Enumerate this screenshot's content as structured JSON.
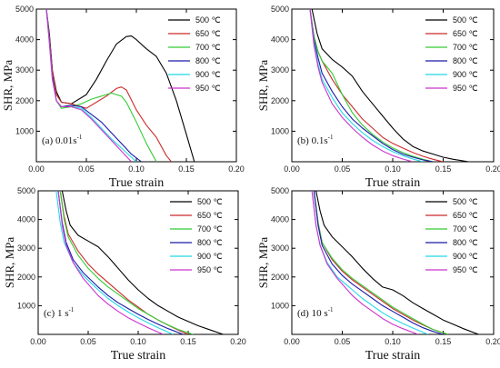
{
  "colors": {
    "500": "#000000",
    "650": "#cc2b2b",
    "700": "#33cc33",
    "800": "#1a1aa8",
    "900": "#22d8e8",
    "950": "#cc33cc"
  },
  "chart_data": [
    {
      "type": "line",
      "panel_label": "(a) 0.01s",
      "panel_sup": "-1",
      "xlabel": "True strain",
      "ylabel": "SHR, MPa",
      "xlim": [
        0,
        0.2
      ],
      "ylim": [
        0,
        5000
      ],
      "xticks": [
        "0.00",
        "0.05",
        "0.10",
        "0.15",
        "0.20"
      ],
      "yticks": [
        "1000",
        "2000",
        "3000",
        "4000",
        "5000"
      ],
      "legend_position": "top-right",
      "series": [
        {
          "name": "500 ℃",
          "key": "500",
          "x": [
            0.01,
            0.013,
            0.016,
            0.02,
            0.025,
            0.035,
            0.05,
            0.06,
            0.07,
            0.08,
            0.09,
            0.095,
            0.1,
            0.11,
            0.12,
            0.13,
            0.14,
            0.15,
            0.158
          ],
          "y": [
            5000,
            4200,
            3000,
            2300,
            1950,
            1900,
            2200,
            2700,
            3300,
            3850,
            4100,
            4120,
            4000,
            3700,
            3450,
            2900,
            2000,
            900,
            0
          ]
        },
        {
          "name": "650 ℃",
          "key": "650",
          "x": [
            0.01,
            0.013,
            0.016,
            0.02,
            0.025,
            0.035,
            0.05,
            0.06,
            0.07,
            0.08,
            0.085,
            0.09,
            0.1,
            0.11,
            0.12,
            0.13,
            0.135
          ],
          "y": [
            5000,
            4100,
            3000,
            2200,
            1950,
            1900,
            1750,
            1950,
            2150,
            2400,
            2450,
            2350,
            1700,
            1200,
            800,
            200,
            0
          ]
        },
        {
          "name": "700 ℃",
          "key": "700",
          "x": [
            0.01,
            0.013,
            0.016,
            0.02,
            0.025,
            0.035,
            0.045,
            0.055,
            0.065,
            0.075,
            0.085,
            0.09,
            0.1,
            0.11,
            0.12
          ],
          "y": [
            5000,
            4000,
            2800,
            2000,
            1750,
            1800,
            1900,
            2050,
            2150,
            2250,
            2150,
            1950,
            1300,
            600,
            0
          ]
        },
        {
          "name": "800 ℃",
          "key": "800",
          "x": [
            0.01,
            0.013,
            0.016,
            0.02,
            0.025,
            0.035,
            0.045,
            0.055,
            0.065,
            0.075,
            0.085,
            0.095,
            0.105
          ],
          "y": [
            5000,
            4000,
            2800,
            2000,
            1800,
            1850,
            1800,
            1550,
            1300,
            950,
            600,
            250,
            0
          ]
        },
        {
          "name": "900 ℃",
          "key": "900",
          "x": [
            0.01,
            0.013,
            0.016,
            0.02,
            0.025,
            0.035,
            0.045,
            0.055,
            0.065,
            0.075,
            0.085,
            0.1
          ],
          "y": [
            5000,
            3900,
            2700,
            2000,
            1800,
            1800,
            1750,
            1450,
            1100,
            750,
            450,
            0
          ]
        },
        {
          "name": "950 ℃",
          "key": "950",
          "x": [
            0.01,
            0.013,
            0.016,
            0.02,
            0.025,
            0.035,
            0.045,
            0.055,
            0.065,
            0.075,
            0.085,
            0.095
          ],
          "y": [
            5000,
            3900,
            2700,
            2000,
            1800,
            1800,
            1700,
            1400,
            1050,
            700,
            350,
            0
          ]
        }
      ]
    },
    {
      "type": "line",
      "panel_label": "(b) 0.1s",
      "panel_sup": "-1",
      "xlabel": "True strain",
      "ylabel": "SHR, MPa",
      "xlim": [
        0,
        0.2
      ],
      "ylim": [
        0,
        5000
      ],
      "xticks": [
        "0.00",
        "0.05",
        "0.10",
        "0.15",
        "0.20"
      ],
      "yticks": [
        "1000",
        "2000",
        "3000",
        "4000",
        "5000"
      ],
      "legend_position": "top-right",
      "series": [
        {
          "name": "500 ℃",
          "key": "500",
          "x": [
            0.02,
            0.025,
            0.03,
            0.04,
            0.05,
            0.06,
            0.07,
            0.08,
            0.09,
            0.1,
            0.11,
            0.12,
            0.13,
            0.14,
            0.15,
            0.16,
            0.175
          ],
          "y": [
            5000,
            4200,
            3700,
            3350,
            3100,
            2800,
            2300,
            1900,
            1500,
            1100,
            750,
            500,
            350,
            250,
            150,
            80,
            0
          ]
        },
        {
          "name": "650 ℃",
          "key": "650",
          "x": [
            0.018,
            0.022,
            0.026,
            0.03,
            0.04,
            0.05,
            0.06,
            0.07,
            0.08,
            0.09,
            0.1,
            0.11,
            0.12,
            0.13,
            0.14,
            0.15
          ],
          "y": [
            5000,
            4100,
            3600,
            3300,
            2700,
            2200,
            1800,
            1400,
            1100,
            800,
            600,
            450,
            300,
            180,
            80,
            0
          ]
        },
        {
          "name": "700 ℃",
          "key": "700",
          "x": [
            0.018,
            0.022,
            0.026,
            0.03,
            0.04,
            0.05,
            0.06,
            0.07,
            0.08,
            0.09,
            0.1,
            0.11,
            0.12,
            0.13,
            0.14
          ],
          "y": [
            5000,
            4100,
            3600,
            3300,
            2900,
            2200,
            1600,
            1200,
            900,
            650,
            450,
            300,
            180,
            80,
            0
          ]
        },
        {
          "name": "800 ℃",
          "key": "800",
          "x": [
            0.018,
            0.022,
            0.026,
            0.03,
            0.04,
            0.05,
            0.06,
            0.07,
            0.08,
            0.09,
            0.1,
            0.11,
            0.12,
            0.13,
            0.14
          ],
          "y": [
            5000,
            4000,
            3400,
            2900,
            2300,
            1800,
            1400,
            1100,
            850,
            600,
            400,
            250,
            150,
            60,
            0
          ]
        },
        {
          "name": "900 ℃",
          "key": "900",
          "x": [
            0.018,
            0.022,
            0.026,
            0.03,
            0.04,
            0.05,
            0.06,
            0.07,
            0.08,
            0.09,
            0.1,
            0.11,
            0.12,
            0.13
          ],
          "y": [
            5000,
            3900,
            3200,
            2700,
            2100,
            1600,
            1250,
            950,
            700,
            500,
            330,
            200,
            90,
            0
          ]
        },
        {
          "name": "950 ℃",
          "key": "950",
          "x": [
            0.018,
            0.022,
            0.026,
            0.03,
            0.04,
            0.05,
            0.06,
            0.07,
            0.08,
            0.09,
            0.1,
            0.11,
            0.12
          ],
          "y": [
            5000,
            3800,
            3100,
            2600,
            1900,
            1450,
            1100,
            800,
            550,
            350,
            200,
            90,
            0
          ]
        }
      ]
    },
    {
      "type": "line",
      "panel_label": "(c) 1 s",
      "panel_sup": "-1",
      "xlabel": "True strain",
      "ylabel": "SHR, MPa",
      "xlim": [
        0,
        0.2
      ],
      "ylim": [
        0,
        5000
      ],
      "xticks": [
        "0.00",
        "0.05",
        "0.10",
        "0.15",
        "0.20"
      ],
      "yticks": [
        "1000",
        "2000",
        "3000",
        "4000",
        "5000"
      ],
      "legend_position": "top-right",
      "series": [
        {
          "name": "500 ℃",
          "key": "500",
          "x": [
            0.024,
            0.028,
            0.032,
            0.04,
            0.05,
            0.06,
            0.07,
            0.08,
            0.09,
            0.1,
            0.11,
            0.12,
            0.13,
            0.14,
            0.15,
            0.16,
            0.17,
            0.185
          ],
          "y": [
            5000,
            4300,
            3800,
            3450,
            3250,
            3050,
            2700,
            2300,
            1900,
            1550,
            1250,
            1000,
            800,
            600,
            450,
            300,
            180,
            0
          ]
        },
        {
          "name": "650 ℃",
          "key": "650",
          "x": [
            0.022,
            0.026,
            0.03,
            0.04,
            0.05,
            0.06,
            0.07,
            0.08,
            0.09,
            0.1,
            0.11,
            0.12,
            0.13,
            0.14,
            0.15
          ],
          "y": [
            5000,
            4100,
            3500,
            2900,
            2450,
            2100,
            1800,
            1500,
            1200,
            950,
            700,
            500,
            320,
            150,
            0
          ]
        },
        {
          "name": "700 ℃",
          "key": "700",
          "x": [
            0.022,
            0.026,
            0.03,
            0.04,
            0.05,
            0.06,
            0.07,
            0.08,
            0.09,
            0.1,
            0.11,
            0.12,
            0.13,
            0.14,
            0.155
          ],
          "y": [
            5000,
            4000,
            3400,
            2750,
            2300,
            1950,
            1650,
            1400,
            1150,
            900,
            700,
            500,
            330,
            170,
            0
          ]
        },
        {
          "name": "800 ℃",
          "key": "800",
          "x": [
            0.02,
            0.024,
            0.028,
            0.035,
            0.045,
            0.06,
            0.07,
            0.08,
            0.09,
            0.1,
            0.11,
            0.12,
            0.13,
            0.145
          ],
          "y": [
            5000,
            3900,
            3200,
            2600,
            2150,
            1650,
            1350,
            1100,
            900,
            700,
            520,
            350,
            200,
            0
          ]
        },
        {
          "name": "900 ℃",
          "key": "900",
          "x": [
            0.018,
            0.022,
            0.026,
            0.035,
            0.045,
            0.06,
            0.07,
            0.08,
            0.09,
            0.1,
            0.11,
            0.12,
            0.135
          ],
          "y": [
            5000,
            3900,
            3200,
            2500,
            2050,
            1550,
            1250,
            1000,
            780,
            580,
            400,
            230,
            0
          ]
        },
        {
          "name": "950 ℃",
          "key": "950",
          "x": [
            0.02,
            0.024,
            0.028,
            0.035,
            0.045,
            0.06,
            0.07,
            0.08,
            0.09,
            0.1,
            0.11,
            0.125
          ],
          "y": [
            5000,
            3800,
            3100,
            2500,
            1950,
            1350,
            1050,
            800,
            580,
            400,
            230,
            0
          ]
        }
      ]
    },
    {
      "type": "line",
      "panel_label": "(d) 10 s",
      "panel_sup": "-1",
      "xlabel": "True strain",
      "ylabel": "SHR, MPa",
      "xlim": [
        0,
        0.2
      ],
      "ylim": [
        0,
        5000
      ],
      "xticks": [
        "0.00",
        "0.05",
        "0.10",
        "0.15",
        "0.20"
      ],
      "yticks": [
        "1000",
        "2000",
        "3000",
        "4000",
        "5000"
      ],
      "legend_position": "top-right",
      "series": [
        {
          "name": "500 ℃",
          "key": "500",
          "x": [
            0.024,
            0.028,
            0.032,
            0.04,
            0.05,
            0.06,
            0.07,
            0.08,
            0.09,
            0.1,
            0.11,
            0.12,
            0.13,
            0.14,
            0.15,
            0.16,
            0.17,
            0.185
          ],
          "y": [
            5000,
            4300,
            3800,
            3400,
            3050,
            2700,
            2300,
            1950,
            1650,
            1550,
            1350,
            1100,
            900,
            700,
            500,
            350,
            200,
            0
          ]
        },
        {
          "name": "650 ℃",
          "key": "650",
          "x": [
            0.022,
            0.026,
            0.03,
            0.04,
            0.05,
            0.06,
            0.07,
            0.08,
            0.09,
            0.1,
            0.11,
            0.12,
            0.13,
            0.14,
            0.155
          ],
          "y": [
            5000,
            3900,
            3200,
            2600,
            2200,
            1900,
            1650,
            1400,
            1150,
            900,
            700,
            500,
            330,
            170,
            0
          ]
        },
        {
          "name": "700 ℃",
          "key": "700",
          "x": [
            0.022,
            0.026,
            0.03,
            0.04,
            0.05,
            0.06,
            0.07,
            0.08,
            0.09,
            0.1,
            0.11,
            0.12,
            0.13,
            0.14,
            0.155
          ],
          "y": [
            5000,
            3900,
            3200,
            2650,
            2250,
            1950,
            1700,
            1450,
            1200,
            950,
            750,
            550,
            350,
            170,
            0
          ]
        },
        {
          "name": "800 ℃",
          "key": "800",
          "x": [
            0.022,
            0.026,
            0.03,
            0.04,
            0.05,
            0.06,
            0.07,
            0.08,
            0.09,
            0.1,
            0.11,
            0.12,
            0.13,
            0.14,
            0.15
          ],
          "y": [
            5000,
            3800,
            3100,
            2450,
            2050,
            1750,
            1500,
            1250,
            1000,
            800,
            600,
            400,
            230,
            100,
            0
          ]
        },
        {
          "name": "900 ℃",
          "key": "900",
          "x": [
            0.02,
            0.024,
            0.028,
            0.035,
            0.045,
            0.06,
            0.07,
            0.08,
            0.09,
            0.1,
            0.11,
            0.12,
            0.135
          ],
          "y": [
            5000,
            3800,
            3100,
            2500,
            2000,
            1550,
            1250,
            1000,
            750,
            550,
            380,
            220,
            0
          ]
        },
        {
          "name": "950 ℃",
          "key": "950",
          "x": [
            0.02,
            0.024,
            0.028,
            0.035,
            0.045,
            0.06,
            0.07,
            0.08,
            0.09,
            0.1,
            0.11,
            0.125
          ],
          "y": [
            5000,
            3800,
            3100,
            2450,
            1950,
            1350,
            1050,
            800,
            550,
            350,
            200,
            0
          ]
        }
      ]
    }
  ]
}
